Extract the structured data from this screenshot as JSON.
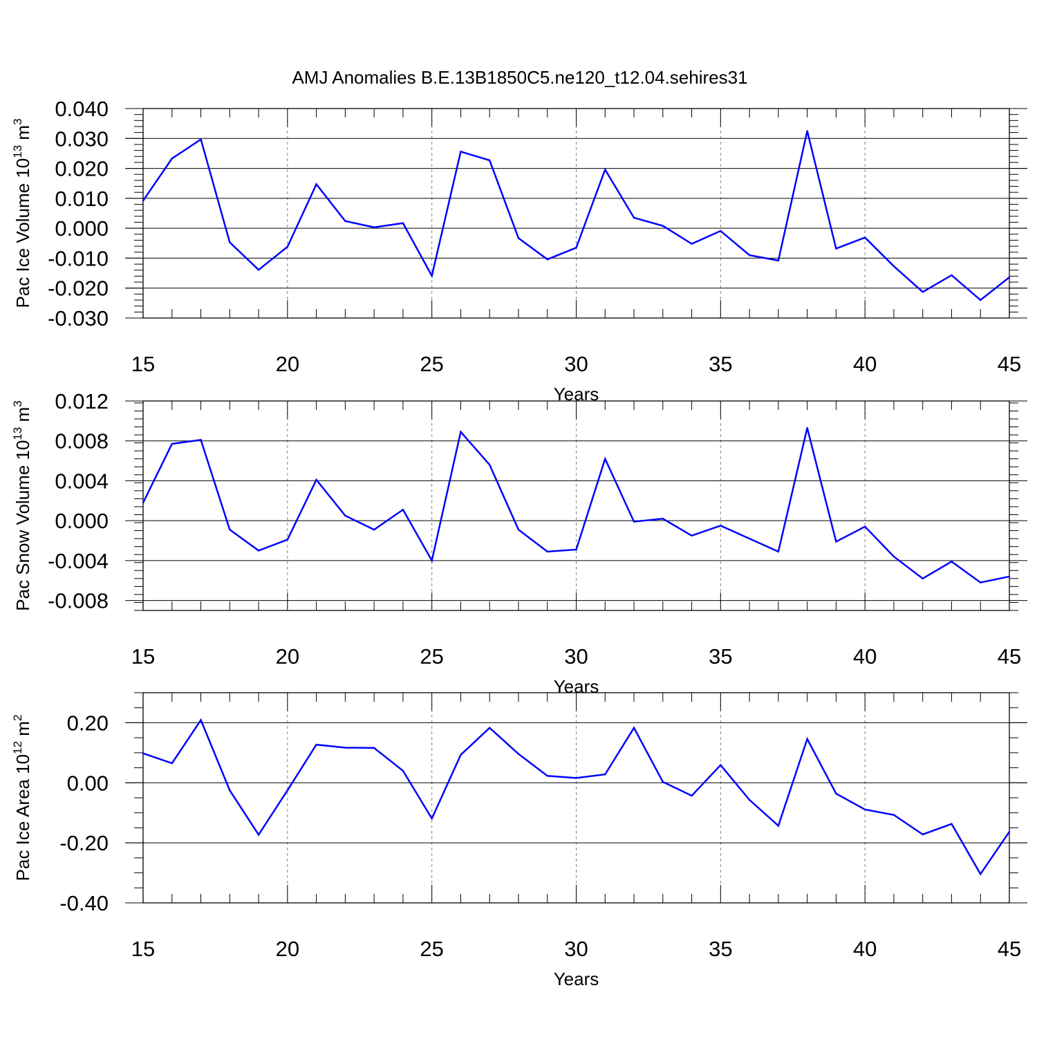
{
  "title": "AMJ Anomalies B.E.13B1850C5.ne120_t12.04.sehires31",
  "colors": {
    "line": "#0000ff",
    "axis": "#000000",
    "grid": "#808080"
  },
  "chart_data": [
    {
      "type": "line",
      "name": "ice-volume",
      "ylabel": "Pac Ice Volume 10",
      "ylabel_exp": "13",
      "ylabel_unit": " m",
      "ylabel_unit_exp": "3",
      "xlabel": "Years",
      "xlim": [
        15,
        45
      ],
      "ylim": [
        -0.03,
        0.04
      ],
      "xticks": [
        15,
        20,
        25,
        30,
        35,
        40,
        45
      ],
      "xtick_labels": [
        "15",
        "20",
        "25",
        "30",
        "35",
        "40",
        "45"
      ],
      "yticks": [
        -0.03,
        -0.02,
        -0.01,
        0.0,
        0.01,
        0.02,
        0.03,
        0.04
      ],
      "ytick_labels": [
        "-0.030",
        "-0.020",
        "-0.010",
        "0.000",
        "0.010",
        "0.020",
        "0.030",
        "0.040"
      ],
      "yminor_step": 0.002,
      "grid": "vertical-dashed",
      "x": [
        15,
        16,
        17,
        18,
        19,
        20,
        21,
        22,
        23,
        24,
        25,
        26,
        27,
        28,
        29,
        30,
        31,
        32,
        33,
        34,
        35,
        36,
        37,
        38,
        39,
        40,
        41,
        42,
        43,
        44,
        45
      ],
      "values": [
        0.0092,
        0.0233,
        0.0297,
        -0.0047,
        -0.0139,
        -0.0062,
        0.0147,
        0.0024,
        0.0003,
        0.0017,
        -0.0159,
        0.0256,
        0.0227,
        -0.0033,
        -0.0104,
        -0.0065,
        0.0196,
        0.0035,
        0.0008,
        -0.0052,
        -0.0009,
        -0.009,
        -0.0108,
        0.0325,
        -0.0068,
        -0.0031,
        -0.0127,
        -0.0213,
        -0.0157,
        -0.024,
        -0.0164
      ]
    },
    {
      "type": "line",
      "name": "snow-volume",
      "ylabel": "Pac Snow Volume 10",
      "ylabel_exp": "13",
      "ylabel_unit": " m",
      "ylabel_unit_exp": "3",
      "xlabel": "Years",
      "xlim": [
        15,
        45
      ],
      "ylim": [
        -0.009,
        0.012
      ],
      "xticks": [
        15,
        20,
        25,
        30,
        35,
        40,
        45
      ],
      "xtick_labels": [
        "15",
        "20",
        "25",
        "30",
        "35",
        "40",
        "45"
      ],
      "yticks": [
        -0.008,
        -0.004,
        0.0,
        0.004,
        0.008,
        0.012
      ],
      "ytick_labels": [
        "-0.008",
        "-0.004",
        "0.000",
        "0.004",
        "0.008",
        "0.012"
      ],
      "yminor_step": 0.0008,
      "grid": "vertical-dashed",
      "x": [
        15,
        16,
        17,
        18,
        19,
        20,
        21,
        22,
        23,
        24,
        25,
        26,
        27,
        28,
        29,
        30,
        31,
        32,
        33,
        34,
        35,
        36,
        37,
        38,
        39,
        40,
        41,
        42,
        43,
        44,
        45
      ],
      "values": [
        0.0018,
        0.0077,
        0.0081,
        -0.0009,
        -0.003,
        -0.0019,
        0.0041,
        0.0005,
        -0.0009,
        0.0011,
        -0.004,
        0.0089,
        0.0056,
        -0.0009,
        -0.0031,
        -0.0029,
        0.0062,
        -0.0001,
        0.0002,
        -0.0015,
        -0.0005,
        -0.0018,
        -0.0031,
        0.0093,
        -0.0021,
        -0.0006,
        -0.0036,
        -0.0058,
        -0.0041,
        -0.0062,
        -0.0056
      ]
    },
    {
      "type": "line",
      "name": "ice-area",
      "ylabel": "Pac Ice Area 10",
      "ylabel_exp": "12",
      "ylabel_unit": " m",
      "ylabel_unit_exp": "2",
      "xlabel": "Years",
      "xlim": [
        15,
        45
      ],
      "ylim": [
        -0.4,
        0.3
      ],
      "xticks": [
        15,
        20,
        25,
        30,
        35,
        40,
        45
      ],
      "xtick_labels": [
        "15",
        "20",
        "25",
        "30",
        "35",
        "40",
        "45"
      ],
      "yticks": [
        -0.4,
        -0.2,
        0.0,
        0.2
      ],
      "ytick_labels": [
        "-0.40",
        "-0.20",
        "0.00",
        "0.20"
      ],
      "yminor_step": 0.05,
      "grid": "vertical-dashed",
      "x": [
        15,
        16,
        17,
        18,
        19,
        20,
        21,
        22,
        23,
        24,
        25,
        26,
        27,
        28,
        29,
        30,
        31,
        32,
        33,
        34,
        35,
        36,
        37,
        38,
        39,
        40,
        41,
        42,
        43,
        44,
        45
      ],
      "values": [
        0.098,
        0.065,
        0.209,
        -0.025,
        -0.173,
        -0.025,
        0.127,
        0.117,
        0.116,
        0.04,
        -0.119,
        0.093,
        0.183,
        0.096,
        0.023,
        0.016,
        0.028,
        0.183,
        0.003,
        -0.043,
        0.059,
        -0.057,
        -0.143,
        0.146,
        -0.036,
        -0.089,
        -0.107,
        -0.172,
        -0.137,
        -0.304,
        -0.163
      ]
    }
  ]
}
